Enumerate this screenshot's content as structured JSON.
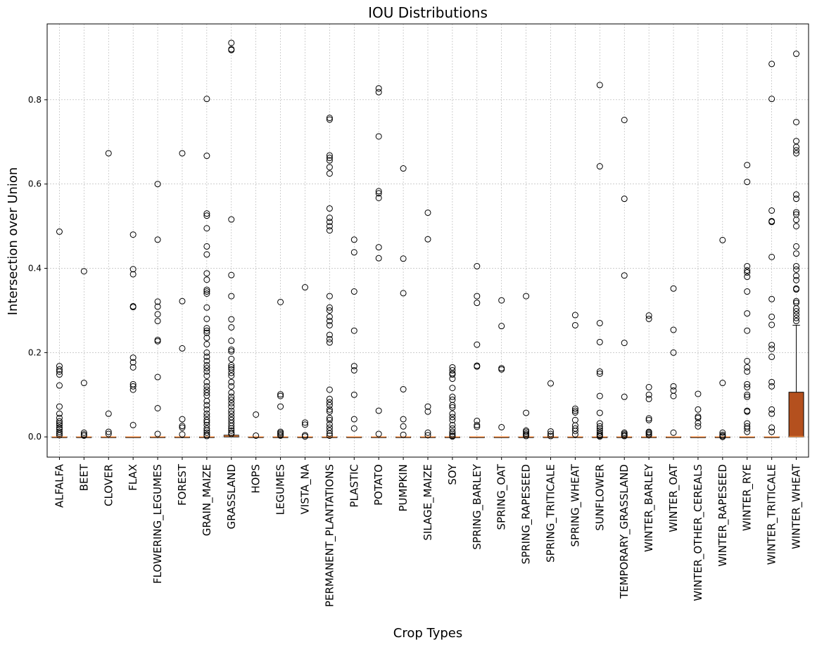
{
  "chart_data": {
    "type": "box",
    "title": "IOU Distributions",
    "xlabel": "Crop Types",
    "ylabel": "Intersection over Union",
    "ylim": [
      -0.048,
      0.98
    ],
    "yticks": [
      "0.0",
      "0.2",
      "0.4",
      "0.6",
      "0.8"
    ],
    "grid": true,
    "colors": {
      "box_fill": "#b4501e",
      "median": "#e8833a",
      "outlier": "#000000",
      "grid": "#b0b0b0"
    },
    "categories": [
      "ALFALFA",
      "BEET",
      "CLOVER",
      "FLAX",
      "FLOWERING_LEGUMES",
      "FOREST",
      "GRAIN_MAIZE",
      "GRASSLAND",
      "HOPS",
      "LEGUMES",
      "VISTA_NA",
      "PERMANENT_PLANTATIONS",
      "PLASTIC",
      "POTATO",
      "PUMPKIN",
      "SILAGE_MAIZE",
      "SOY",
      "SPRING_BARLEY",
      "SPRING_OAT",
      "SPRING_RAPESEED",
      "SPRING_TRITICALE",
      "SPRING_WHEAT",
      "SUNFLOWER",
      "TEMPORARY_GRASSLAND",
      "WINTER_BARLEY",
      "WINTER_OAT",
      "WINTER_OTHER_CEREALS",
      "WINTER_RAPESEED",
      "WINTER_RYE",
      "WINTER_TRITICALE",
      "WINTER_WHEAT"
    ],
    "boxes": [
      {
        "q1": 0,
        "median": 0,
        "q3": 0,
        "whisker_high": 0,
        "outliers": [
          0.487,
          0.168,
          0.16,
          0.155,
          0.148,
          0.122,
          0.072,
          0.055,
          0.045,
          0.037,
          0.032,
          0.028,
          0.022,
          0.018,
          0.012,
          0.008,
          0.004
        ]
      },
      {
        "q1": 0,
        "median": 0,
        "q3": 0,
        "whisker_high": 0,
        "outliers": [
          0.393,
          0.128,
          0.01,
          0.006,
          0.003
        ]
      },
      {
        "q1": 0,
        "median": 0,
        "q3": 0,
        "whisker_high": 0,
        "outliers": [
          0.673,
          0.055,
          0.012,
          0.007
        ]
      },
      {
        "q1": 0,
        "median": 0,
        "q3": 0,
        "whisker_high": 0,
        "outliers": [
          0.48,
          0.398,
          0.386,
          0.31,
          0.308,
          0.188,
          0.177,
          0.165,
          0.125,
          0.12,
          0.112,
          0.028
        ]
      },
      {
        "q1": 0,
        "median": 0,
        "q3": 0,
        "whisker_high": 0,
        "outliers": [
          0.6,
          0.468,
          0.321,
          0.309,
          0.291,
          0.275,
          0.23,
          0.227,
          0.142,
          0.068,
          0.007
        ]
      },
      {
        "q1": 0,
        "median": 0,
        "q3": 0,
        "whisker_high": 0,
        "outliers": [
          0.673,
          0.322,
          0.21,
          0.042,
          0.026,
          0.022,
          0.006
        ]
      },
      {
        "q1": 0,
        "median": 0,
        "q3": 0,
        "whisker_high": 0,
        "outliers": [
          0.802,
          0.667,
          0.53,
          0.525,
          0.495,
          0.452,
          0.433,
          0.388,
          0.373,
          0.349,
          0.345,
          0.34,
          0.307,
          0.28,
          0.258,
          0.252,
          0.247,
          0.235,
          0.22,
          0.2,
          0.19,
          0.18,
          0.17,
          0.163,
          0.155,
          0.145,
          0.13,
          0.12,
          0.112,
          0.105,
          0.098,
          0.085,
          0.075,
          0.065,
          0.055,
          0.048,
          0.04,
          0.035,
          0.028,
          0.02,
          0.015,
          0.01,
          0.005,
          0.002
        ]
      },
      {
        "q1": 0,
        "median": 0.002,
        "q3": 0.004,
        "whisker_high": 0.004,
        "outliers": [
          0.935,
          0.92,
          0.918,
          0.516,
          0.384,
          0.334,
          0.279,
          0.26,
          0.228,
          0.207,
          0.203,
          0.185,
          0.17,
          0.165,
          0.16,
          0.152,
          0.145,
          0.13,
          0.12,
          0.105,
          0.095,
          0.088,
          0.08,
          0.072,
          0.062,
          0.055,
          0.047,
          0.04,
          0.033,
          0.026,
          0.02,
          0.015,
          0.01,
          0.007
        ]
      },
      {
        "q1": 0,
        "median": 0,
        "q3": 0,
        "whisker_high": 0,
        "outliers": [
          0.053,
          0.003
        ]
      },
      {
        "q1": 0,
        "median": 0,
        "q3": 0,
        "whisker_high": 0,
        "outliers": [
          0.32,
          0.101,
          0.097,
          0.072,
          0.012,
          0.009,
          0.006,
          0.003
        ]
      },
      {
        "q1": 0,
        "median": 0,
        "q3": 0,
        "whisker_high": 0,
        "outliers": [
          0.355,
          0.034,
          0.029,
          0.004,
          0.001
        ]
      },
      {
        "q1": 0,
        "median": 0,
        "q3": 0,
        "whisker_high": 0,
        "outliers": [
          0.757,
          0.753,
          0.668,
          0.662,
          0.656,
          0.64,
          0.625,
          0.542,
          0.52,
          0.51,
          0.5,
          0.49,
          0.334,
          0.307,
          0.3,
          0.285,
          0.275,
          0.265,
          0.242,
          0.232,
          0.224,
          0.112,
          0.09,
          0.082,
          0.075,
          0.065,
          0.06,
          0.045,
          0.04,
          0.03,
          0.022,
          0.015,
          0.008,
          0.003
        ]
      },
      {
        "q1": 0,
        "median": 0,
        "q3": 0,
        "whisker_high": 0,
        "outliers": [
          0.468,
          0.438,
          0.345,
          0.252,
          0.168,
          0.158,
          0.1,
          0.042,
          0.02
        ]
      },
      {
        "q1": 0,
        "median": 0,
        "q3": 0,
        "whisker_high": 0,
        "outliers": [
          0.827,
          0.818,
          0.713,
          0.583,
          0.578,
          0.567,
          0.45,
          0.424,
          0.062,
          0.007
        ]
      },
      {
        "q1": 0,
        "median": 0,
        "q3": 0,
        "whisker_high": 0,
        "outliers": [
          0.637,
          0.423,
          0.341,
          0.113,
          0.042,
          0.025,
          0.005
        ]
      },
      {
        "q1": 0,
        "median": 0,
        "q3": 0,
        "whisker_high": 0,
        "outliers": [
          0.532,
          0.469,
          0.072,
          0.06,
          0.01,
          0.004
        ]
      },
      {
        "q1": 0,
        "median": 0,
        "q3": 0,
        "whisker_high": 0,
        "outliers": [
          0.165,
          0.158,
          0.151,
          0.148,
          0.138,
          0.116,
          0.095,
          0.088,
          0.075,
          0.07,
          0.055,
          0.047,
          0.04,
          0.028,
          0.02,
          0.012,
          0.007,
          0.003,
          0.001
        ]
      },
      {
        "q1": 0,
        "median": 0,
        "q3": 0,
        "whisker_high": 0,
        "outliers": [
          0.405,
          0.334,
          0.318,
          0.219,
          0.169,
          0.167,
          0.038,
          0.028,
          0.024
        ]
      },
      {
        "q1": 0,
        "median": 0,
        "q3": 0,
        "whisker_high": 0,
        "outliers": [
          0.324,
          0.263,
          0.163,
          0.16,
          0.023
        ]
      },
      {
        "q1": 0,
        "median": 0,
        "q3": 0,
        "whisker_high": 0,
        "outliers": [
          0.334,
          0.057,
          0.015,
          0.012,
          0.008,
          0.005,
          0.002
        ]
      },
      {
        "q1": 0,
        "median": 0,
        "q3": 0,
        "whisker_high": 0,
        "outliers": [
          0.127,
          0.013,
          0.007,
          0.002
        ]
      },
      {
        "q1": 0,
        "median": 0,
        "q3": 0,
        "whisker_high": 0,
        "outliers": [
          0.289,
          0.265,
          0.067,
          0.062,
          0.058,
          0.04,
          0.027,
          0.02,
          0.014,
          0.006
        ]
      },
      {
        "q1": 0,
        "median": 0,
        "q3": 0,
        "whisker_high": 0,
        "outliers": [
          0.835,
          0.642,
          0.27,
          0.225,
          0.155,
          0.15,
          0.097,
          0.057,
          0.032,
          0.025,
          0.02,
          0.015,
          0.01,
          0.006,
          0.003,
          0.001
        ]
      },
      {
        "q1": 0,
        "median": 0,
        "q3": 0,
        "whisker_high": 0,
        "outliers": [
          0.752,
          0.565,
          0.383,
          0.223,
          0.095,
          0.01,
          0.007,
          0.004,
          0.002
        ]
      },
      {
        "q1": 0,
        "median": 0,
        "q3": 0,
        "whisker_high": 0,
        "outliers": [
          0.288,
          0.28,
          0.118,
          0.1,
          0.09,
          0.044,
          0.04,
          0.012,
          0.01,
          0.007,
          0.004
        ]
      },
      {
        "q1": 0,
        "median": 0,
        "q3": 0,
        "whisker_high": 0,
        "outliers": [
          0.352,
          0.254,
          0.2,
          0.12,
          0.11,
          0.097,
          0.01
        ]
      },
      {
        "q1": 0,
        "median": 0,
        "q3": 0,
        "whisker_high": 0,
        "outliers": [
          0.102,
          0.065,
          0.048,
          0.045,
          0.033,
          0.025
        ]
      },
      {
        "q1": 0,
        "median": 0,
        "q3": 0,
        "whisker_high": 0,
        "outliers": [
          0.467,
          0.128,
          0.01,
          0.005,
          0.002,
          0.0
        ]
      },
      {
        "q1": 0,
        "median": 0,
        "q3": 0,
        "whisker_high": 0,
        "outliers": [
          0.645,
          0.605,
          0.405,
          0.395,
          0.39,
          0.38,
          0.345,
          0.293,
          0.252,
          0.18,
          0.165,
          0.155,
          0.125,
          0.118,
          0.1,
          0.095,
          0.062,
          0.06,
          0.032,
          0.025,
          0.02,
          0.012
        ]
      },
      {
        "q1": 0,
        "median": 0,
        "q3": 0,
        "whisker_high": 0,
        "outliers": [
          0.885,
          0.802,
          0.537,
          0.512,
          0.51,
          0.427,
          0.327,
          0.285,
          0.266,
          0.218,
          0.209,
          0.19,
          0.13,
          0.12,
          0.065,
          0.055,
          0.022,
          0.012
        ]
      },
      {
        "q1": 0,
        "median": 0.001,
        "q3": 0.106,
        "whisker_high": 0.265,
        "outliers": [
          0.909,
          0.747,
          0.702,
          0.688,
          0.68,
          0.673,
          0.575,
          0.565,
          0.533,
          0.528,
          0.515,
          0.5,
          0.452,
          0.435,
          0.405,
          0.397,
          0.382,
          0.372,
          0.352,
          0.35,
          0.322,
          0.318,
          0.305,
          0.298,
          0.29,
          0.282,
          0.275
        ]
      }
    ]
  }
}
